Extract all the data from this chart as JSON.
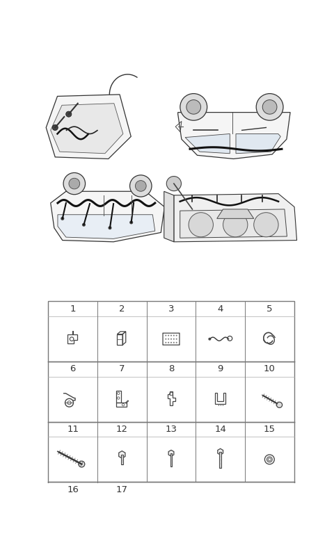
{
  "bg_color": "#ffffff",
  "line_color": "#555555",
  "dark_color": "#222222",
  "label_color": "#333333",
  "label_fontsize": 9.5,
  "figsize": [
    4.8,
    7.81
  ],
  "dpi": 100,
  "table": {
    "L": 0.025,
    "R": 0.975,
    "T": 0.435,
    "ncols": 5,
    "hh": 0.036,
    "ch": 0.108,
    "nrows": 4,
    "labels": [
      [
        "1",
        "2",
        "3",
        "4",
        "5"
      ],
      [
        "6",
        "7",
        "8",
        "9",
        "10"
      ],
      [
        "11",
        "12",
        "13",
        "14",
        "15"
      ],
      [
        "16",
        "17",
        "",
        "",
        ""
      ]
    ]
  }
}
